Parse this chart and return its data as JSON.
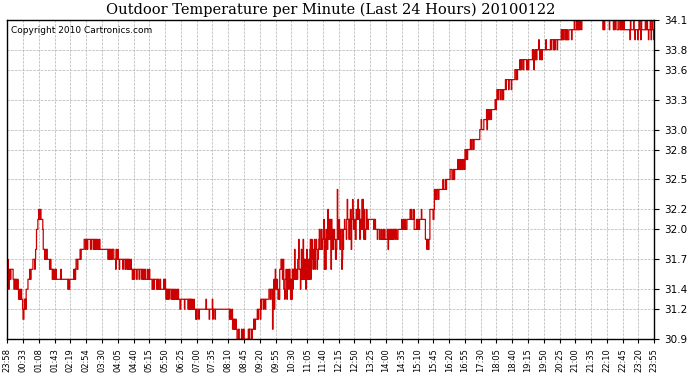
{
  "title": "Outdoor Temperature per Minute (Last 24 Hours) 20100122",
  "copyright": "Copyright 2010 Cartronics.com",
  "line_color": "#cc0000",
  "bg_color": "#ffffff",
  "plot_bg_color": "#ffffff",
  "grid_color": "#aaaaaa",
  "ylim": [
    30.9,
    34.1
  ],
  "yticks": [
    30.9,
    31.2,
    31.4,
    31.7,
    32.0,
    32.2,
    32.5,
    32.8,
    33.0,
    33.3,
    33.6,
    33.8,
    34.1
  ],
  "xtick_labels": [
    "23:58",
    "00:33",
    "01:08",
    "01:43",
    "02:19",
    "02:54",
    "03:30",
    "04:05",
    "04:40",
    "05:15",
    "05:50",
    "06:25",
    "07:00",
    "07:35",
    "08:10",
    "08:45",
    "09:20",
    "09:55",
    "10:30",
    "11:05",
    "11:40",
    "12:15",
    "12:50",
    "13:25",
    "14:00",
    "14:35",
    "15:10",
    "15:45",
    "16:20",
    "16:55",
    "17:30",
    "18:05",
    "18:40",
    "19:15",
    "19:50",
    "20:25",
    "21:00",
    "21:35",
    "22:10",
    "22:45",
    "23:20",
    "23:55"
  ],
  "num_points": 1440
}
